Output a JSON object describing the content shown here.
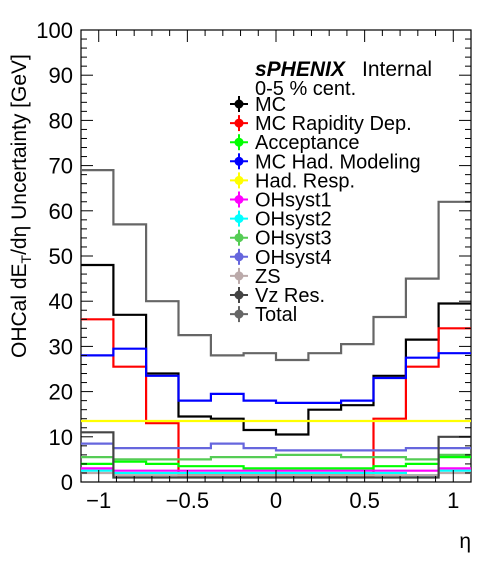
{
  "chart_data": {
    "type": "line",
    "ylabel_parts": [
      "OHCal dE",
      "T",
      "/dη Uncertainty [GeV]"
    ],
    "xlabel": "η",
    "xlim": [
      -1.1,
      1.1
    ],
    "ylim": [
      0,
      100
    ],
    "x_ticks": [
      -1,
      -0.5,
      0,
      0.5,
      1
    ],
    "x_tick_labels": [
      "−1",
      "−0.5",
      "0",
      "0.5",
      "1"
    ],
    "y_ticks": [
      0,
      10,
      20,
      30,
      40,
      50,
      60,
      70,
      80,
      90,
      100
    ],
    "y_tick_labels": [
      "0",
      "10",
      "20",
      "30",
      "40",
      "50",
      "60",
      "70",
      "80",
      "90",
      "100"
    ],
    "header": {
      "brand": "sPHENIX",
      "status": "Internal",
      "centrality": "0-5 % cent."
    },
    "bin_edges": [
      -1.1,
      -0.917,
      -0.733,
      -0.55,
      -0.367,
      -0.183,
      0,
      0.183,
      0.367,
      0.55,
      0.733,
      0.917,
      1.1
    ],
    "series": [
      {
        "name": "MC",
        "color": "#000000",
        "values": [
          48,
          37,
          24,
          14.5,
          14,
          11.5,
          10.5,
          16,
          17,
          23.5,
          31.5,
          39.5
        ]
      },
      {
        "name": "MC Rapidity Dep.",
        "color": "#ff0000",
        "values": [
          36,
          25.5,
          13,
          1.5,
          1.5,
          1.5,
          1.5,
          1.5,
          1.5,
          14,
          25.5,
          34
        ]
      },
      {
        "name": "Acceptance",
        "color": "#00ff00",
        "values": [
          4,
          4.5,
          4,
          3.5,
          3.5,
          3,
          3,
          3,
          3,
          3.5,
          4,
          5.5
        ]
      },
      {
        "name": "MC Had. Modeling",
        "color": "#0000ff",
        "values": [
          28,
          29.5,
          23.5,
          18,
          19.5,
          18,
          17.5,
          17.5,
          18,
          23,
          27.5,
          28.5
        ]
      },
      {
        "name": "Had. Resp.",
        "color": "#ffff00",
        "values": [
          13.5,
          13.5,
          13.5,
          13.5,
          13.5,
          13.5,
          13.5,
          13.5,
          13.5,
          13.5,
          13.5,
          13.5
        ]
      },
      {
        "name": "OHsyst1",
        "color": "#ff00ff",
        "values": [
          3,
          2.5,
          2.5,
          2.5,
          2.5,
          2.5,
          2.5,
          2.5,
          2.5,
          2.5,
          2.5,
          3
        ]
      },
      {
        "name": "OHsyst2",
        "color": "#00ffff",
        "values": [
          2.5,
          2,
          2,
          2,
          2,
          2,
          2,
          2,
          2,
          2,
          1.5,
          2.5
        ]
      },
      {
        "name": "OHsyst3",
        "color": "#55cc55",
        "values": [
          5.5,
          5,
          5,
          5,
          5.5,
          5.5,
          6,
          6,
          5.5,
          5.5,
          5,
          6
        ]
      },
      {
        "name": "OHsyst4",
        "color": "#6666dd",
        "values": [
          8.5,
          7.5,
          7.5,
          7.5,
          8.5,
          7.5,
          7,
          7,
          7,
          7,
          7.5,
          7.5
        ]
      },
      {
        "name": "ZS",
        "color": "#bbaaaa",
        "values": [
          2,
          1.5,
          1.5,
          1.5,
          1.5,
          1.5,
          1.5,
          1.5,
          1.5,
          1.5,
          1.5,
          2
        ]
      },
      {
        "name": "Vz Res.",
        "color": "#444444",
        "values": [
          11,
          1,
          1,
          1,
          1,
          1,
          1,
          1,
          1,
          1,
          1,
          10
        ]
      },
      {
        "name": "Total",
        "color": "#666666",
        "values": [
          69,
          57,
          40,
          32.5,
          28,
          28.5,
          27,
          28.5,
          30.5,
          36.5,
          45,
          62
        ]
      }
    ]
  }
}
